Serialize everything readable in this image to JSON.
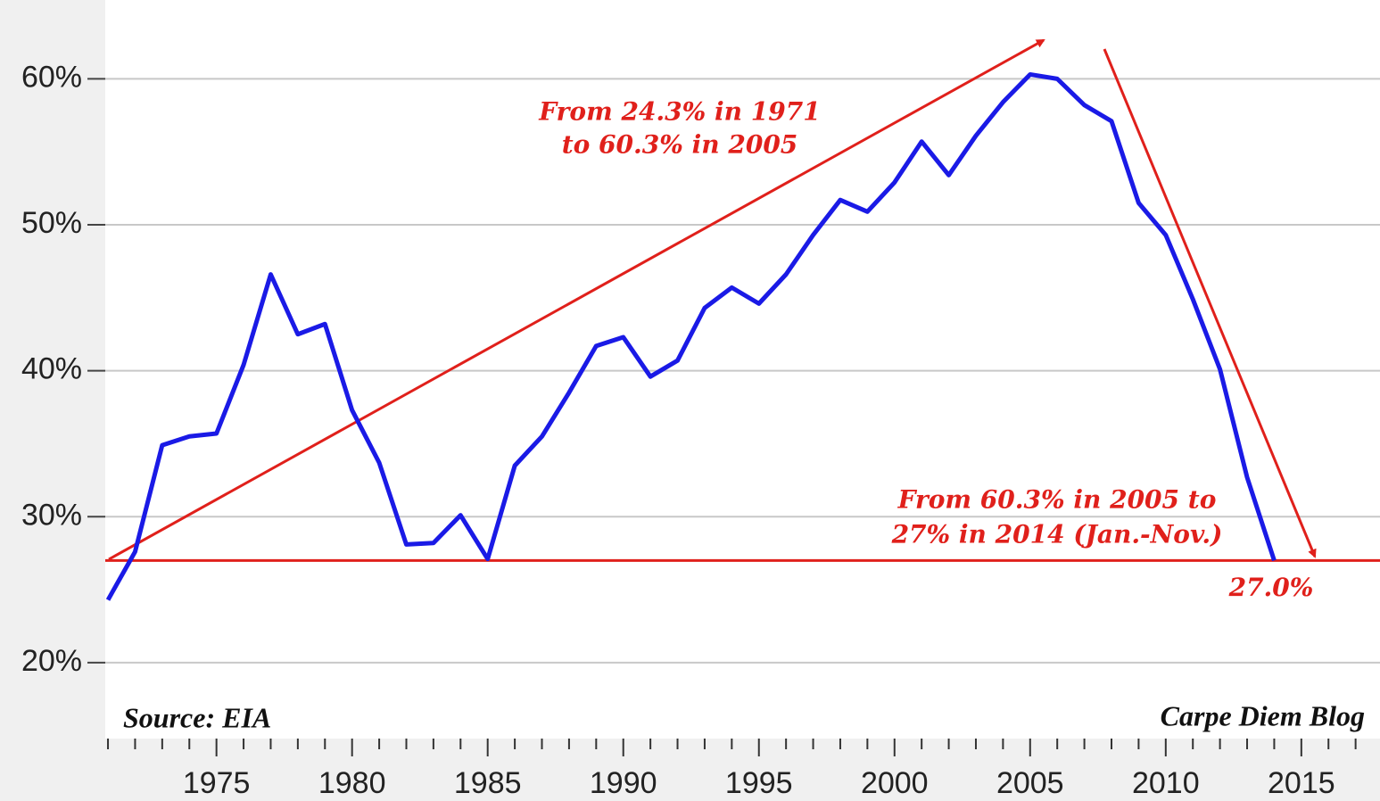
{
  "chart_data": {
    "type": "line",
    "x": [
      1971,
      1972,
      1973,
      1974,
      1975,
      1976,
      1977,
      1978,
      1979,
      1980,
      1981,
      1982,
      1983,
      1984,
      1985,
      1986,
      1987,
      1988,
      1989,
      1990,
      1991,
      1992,
      1993,
      1994,
      1995,
      1996,
      1997,
      1998,
      1999,
      2000,
      2001,
      2002,
      2003,
      2004,
      2005,
      2006,
      2007,
      2008,
      2009,
      2010,
      2011,
      2012,
      2013,
      2014
    ],
    "series": [
      {
        "color": "#1a1ae6",
        "values": [
          24.3,
          27.6,
          34.9,
          35.5,
          35.7,
          40.4,
          46.6,
          42.5,
          43.2,
          37.3,
          33.7,
          28.1,
          28.2,
          30.1,
          27.1,
          33.5,
          35.5,
          38.5,
          41.7,
          42.3,
          39.6,
          40.7,
          44.3,
          45.7,
          44.6,
          46.6,
          49.3,
          51.7,
          50.9,
          52.9,
          55.7,
          53.4,
          56.1,
          58.4,
          60.3,
          60.0,
          58.2,
          57.1,
          51.5,
          49.3,
          44.9,
          40.1,
          32.7,
          27.0
        ]
      }
    ],
    "xlim": [
      1970.9,
      2017.9
    ],
    "ylim": [
      14.8,
      65.4
    ],
    "xticks": [
      1975,
      1980,
      1985,
      1990,
      1995,
      2000,
      2005,
      2010,
      2015
    ],
    "xminorticks": [
      1971,
      1972,
      1973,
      1974,
      1976,
      1977,
      1978,
      1979,
      1981,
      1982,
      1983,
      1984,
      1986,
      1987,
      1988,
      1989,
      1991,
      1992,
      1993,
      1994,
      1996,
      1997,
      1998,
      1999,
      2001,
      2002,
      2003,
      2004,
      2006,
      2007,
      2008,
      2009,
      2011,
      2012,
      2013,
      2014,
      2016,
      2017
    ],
    "yticks": [
      {
        "value": 20,
        "label": "20%"
      },
      {
        "value": 30,
        "label": "30%"
      },
      {
        "value": 40,
        "label": "40%"
      },
      {
        "value": 50,
        "label": "50%"
      },
      {
        "value": 60,
        "label": "60%"
      }
    ],
    "grid": true,
    "reference_line": {
      "value": 27.0,
      "label": "27.0%",
      "color": "#e0201b"
    },
    "annotations": [
      "From 24.3% in 1971",
      "to 60.3% in 2005",
      "From 60.3% in 2005 to",
      "27% in 2014 (Jan.-Nov.)"
    ],
    "source": "Source: EIA",
    "credit": "Carpe Diem Blog"
  }
}
